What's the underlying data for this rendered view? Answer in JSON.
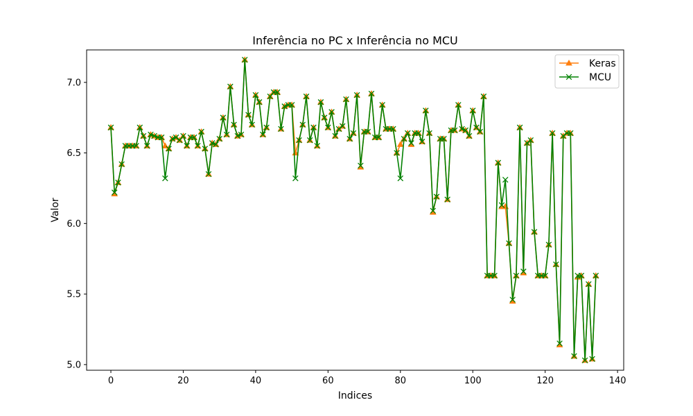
{
  "chart_data": {
    "type": "line",
    "title": "Inferência no PC x Inferência no MCU",
    "xlabel": "Indices",
    "ylabel": "Valor",
    "xlim": [
      -6.7,
      141.7
    ],
    "ylim": [
      4.96,
      7.23
    ],
    "xticks": [
      "0",
      "20",
      "40",
      "60",
      "80",
      "100",
      "120",
      "140"
    ],
    "yticks": [
      "5.0",
      "5.5",
      "6.0",
      "6.5",
      "7.0"
    ],
    "legend_position": "top-right",
    "x": [
      0,
      1,
      2,
      3,
      4,
      5,
      6,
      7,
      8,
      9,
      10,
      11,
      12,
      13,
      14,
      15,
      16,
      17,
      18,
      19,
      20,
      21,
      22,
      23,
      24,
      25,
      26,
      27,
      28,
      29,
      30,
      31,
      32,
      33,
      34,
      35,
      36,
      37,
      38,
      39,
      40,
      41,
      42,
      43,
      44,
      45,
      46,
      47,
      48,
      49,
      50,
      51,
      52,
      53,
      54,
      55,
      56,
      57,
      58,
      59,
      60,
      61,
      62,
      63,
      64,
      65,
      66,
      67,
      68,
      69,
      70,
      71,
      72,
      73,
      74,
      75,
      76,
      77,
      78,
      79,
      80,
      81,
      82,
      83,
      84,
      85,
      86,
      87,
      88,
      89,
      90,
      91,
      92,
      93,
      94,
      95,
      96,
      97,
      98,
      99,
      100,
      101,
      102,
      103,
      104,
      105,
      106,
      107,
      108,
      109,
      110,
      111,
      112,
      113,
      114,
      115,
      116,
      117,
      118,
      119,
      120,
      121,
      122,
      123,
      124,
      125,
      126,
      127,
      128,
      129,
      130,
      131,
      132,
      133,
      134
    ],
    "series": [
      {
        "name": "Keras",
        "color": "#ff7f0e",
        "marker": "triangle",
        "values": [
          6.68,
          6.21,
          6.29,
          6.42,
          6.55,
          6.55,
          6.55,
          6.55,
          6.68,
          6.62,
          6.55,
          6.63,
          6.62,
          6.61,
          6.61,
          6.55,
          6.53,
          6.6,
          6.61,
          6.59,
          6.62,
          6.55,
          6.61,
          6.61,
          6.55,
          6.65,
          6.53,
          6.35,
          6.57,
          6.56,
          6.6,
          6.75,
          6.63,
          6.97,
          6.7,
          6.62,
          6.63,
          7.16,
          6.77,
          6.7,
          6.91,
          6.86,
          6.63,
          6.68,
          6.9,
          6.93,
          6.93,
          6.67,
          6.83,
          6.84,
          6.84,
          6.5,
          6.59,
          6.7,
          6.9,
          6.59,
          6.68,
          6.55,
          6.86,
          6.75,
          6.68,
          6.79,
          6.62,
          6.67,
          6.69,
          6.88,
          6.6,
          6.64,
          6.91,
          6.4,
          6.65,
          6.65,
          6.92,
          6.61,
          6.61,
          6.84,
          6.67,
          6.67,
          6.67,
          6.5,
          6.56,
          6.6,
          6.64,
          6.56,
          6.64,
          6.64,
          6.58,
          6.8,
          6.64,
          6.08,
          6.19,
          6.6,
          6.6,
          6.17,
          6.66,
          6.66,
          6.84,
          6.67,
          6.66,
          6.62,
          6.8,
          6.68,
          6.65,
          6.9,
          5.63,
          5.63,
          5.63,
          6.43,
          6.12,
          6.12,
          5.86,
          5.45,
          5.63,
          6.68,
          5.65,
          6.57,
          6.59,
          5.94,
          5.63,
          5.63,
          5.63,
          5.85,
          6.64,
          5.71,
          5.14,
          6.62,
          6.64,
          6.64,
          5.06,
          5.62,
          5.63,
          5.03,
          5.57,
          5.04,
          5.63
        ]
      },
      {
        "name": "MCU",
        "color": "#008000",
        "marker": "x",
        "values": [
          6.68,
          6.22,
          6.29,
          6.42,
          6.55,
          6.55,
          6.55,
          6.55,
          6.68,
          6.62,
          6.55,
          6.63,
          6.62,
          6.61,
          6.61,
          6.32,
          6.53,
          6.6,
          6.61,
          6.59,
          6.62,
          6.55,
          6.61,
          6.61,
          6.55,
          6.65,
          6.53,
          6.35,
          6.57,
          6.56,
          6.6,
          6.75,
          6.63,
          6.97,
          6.7,
          6.62,
          6.63,
          7.16,
          6.77,
          6.7,
          6.91,
          6.86,
          6.63,
          6.68,
          6.9,
          6.93,
          6.93,
          6.67,
          6.83,
          6.84,
          6.84,
          6.32,
          6.59,
          6.7,
          6.9,
          6.59,
          6.68,
          6.55,
          6.86,
          6.75,
          6.68,
          6.79,
          6.62,
          6.67,
          6.69,
          6.88,
          6.6,
          6.64,
          6.91,
          6.41,
          6.65,
          6.65,
          6.92,
          6.61,
          6.61,
          6.84,
          6.67,
          6.67,
          6.67,
          6.5,
          6.32,
          6.6,
          6.64,
          6.57,
          6.64,
          6.64,
          6.58,
          6.8,
          6.64,
          6.09,
          6.19,
          6.6,
          6.6,
          6.17,
          6.66,
          6.66,
          6.84,
          6.67,
          6.66,
          6.62,
          6.8,
          6.68,
          6.65,
          6.9,
          5.63,
          5.63,
          5.63,
          6.43,
          6.13,
          6.31,
          5.86,
          5.46,
          5.63,
          6.68,
          5.66,
          6.57,
          6.59,
          5.94,
          5.63,
          5.63,
          5.63,
          5.85,
          6.64,
          5.71,
          5.15,
          6.62,
          6.64,
          6.64,
          5.06,
          5.63,
          5.63,
          5.03,
          5.57,
          5.04,
          5.63
        ]
      }
    ]
  }
}
